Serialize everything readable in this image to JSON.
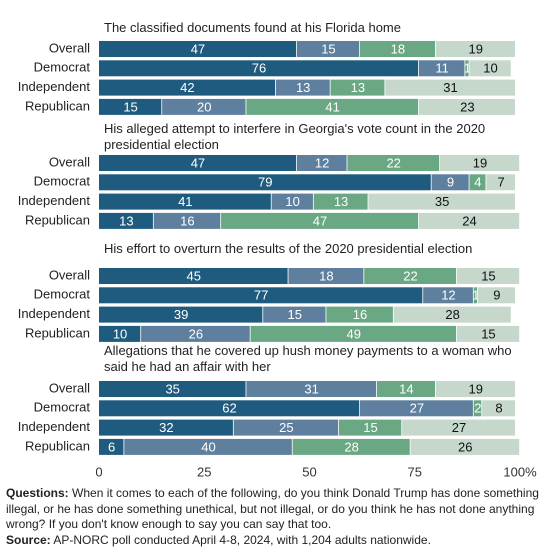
{
  "chart_data": [
    {
      "type": "bar",
      "title": "The classified documents found at his Florida home",
      "categories": [
        "Overall",
        "Democrat",
        "Independent",
        "Republican"
      ],
      "series": [
        {
          "color": "#1f5b7e",
          "values": [
            47,
            76,
            42,
            15
          ]
        },
        {
          "color": "#5e7f9e",
          "values": [
            15,
            11,
            13,
            20
          ]
        },
        {
          "color": "#6aa883",
          "values": [
            18,
            1,
            13,
            41
          ]
        },
        {
          "color": "#c6d7cc",
          "values": [
            19,
            10,
            31,
            23
          ]
        }
      ],
      "xlim": [
        0,
        100
      ]
    },
    {
      "type": "bar",
      "title": "His alleged attempt to interfere in Georgia's vote count in the 2020 presidential election",
      "categories": [
        "Overall",
        "Democrat",
        "Independent",
        "Republican"
      ],
      "series": [
        {
          "color": "#1f5b7e",
          "values": [
            47,
            79,
            41,
            13
          ]
        },
        {
          "color": "#5e7f9e",
          "values": [
            12,
            9,
            10,
            16
          ]
        },
        {
          "color": "#6aa883",
          "values": [
            22,
            4,
            13,
            47
          ]
        },
        {
          "color": "#c6d7cc",
          "values": [
            19,
            7,
            35,
            24
          ]
        }
      ],
      "xlim": [
        0,
        100
      ]
    },
    {
      "type": "bar",
      "title": "His effort to overturn the results of the 2020 presidential election",
      "categories": [
        "Overall",
        "Democrat",
        "Independent",
        "Republican"
      ],
      "series": [
        {
          "color": "#1f5b7e",
          "values": [
            45,
            77,
            39,
            10
          ]
        },
        {
          "color": "#5e7f9e",
          "values": [
            18,
            12,
            15,
            26
          ]
        },
        {
          "color": "#6aa883",
          "values": [
            22,
            1,
            16,
            49
          ]
        },
        {
          "color": "#c6d7cc",
          "values": [
            15,
            9,
            28,
            15
          ]
        }
      ],
      "xlim": [
        0,
        100
      ]
    },
    {
      "type": "bar",
      "title": "Allegations that he covered up hush money payments to a woman who said he had an affair with her",
      "categories": [
        "Overall",
        "Democrat",
        "Independent",
        "Republican"
      ],
      "series": [
        {
          "color": "#1f5b7e",
          "values": [
            35,
            62,
            32,
            6
          ]
        },
        {
          "color": "#5e7f9e",
          "values": [
            31,
            27,
            25,
            40
          ]
        },
        {
          "color": "#6aa883",
          "values": [
            14,
            2,
            15,
            28
          ]
        },
        {
          "color": "#c6d7cc",
          "values": [
            19,
            8,
            27,
            26
          ]
        }
      ],
      "xlim": [
        0,
        100
      ],
      "xticks": [
        0,
        25,
        50,
        75,
        {
          "value": 100,
          "label": "100%"
        }
      ]
    }
  ],
  "footer": {
    "questions_label": "Questions:",
    "questions": "When it comes to each of the following, do you think Donald Trump has done something illegal, or he has done something unethical, but not illegal, or do you think he has not done anything wrong? If you don't know enough to say you can say that too.",
    "source_label": "Source:",
    "source": "AP-NORC poll conducted April 4-8, 2024, with 1,204 adults nationwide."
  }
}
